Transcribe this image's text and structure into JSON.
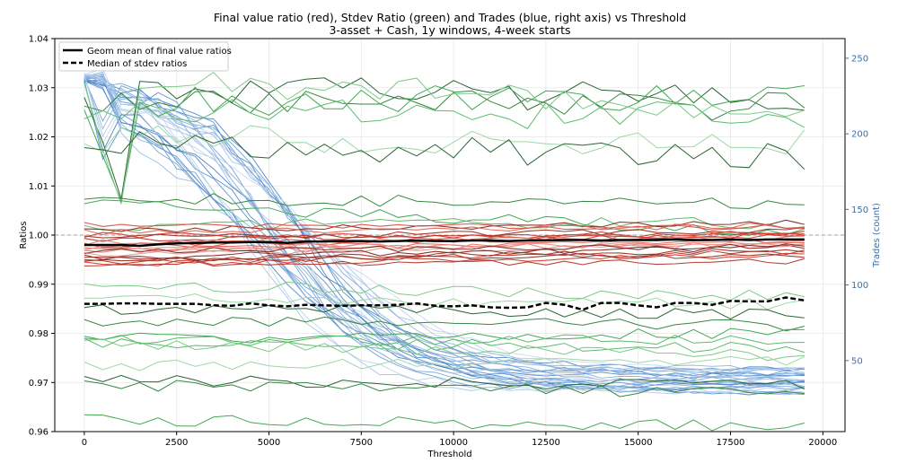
{
  "chart_data": {
    "type": "line",
    "title": "Final value ratio (red), Stdev Ratio (green) and Trades (blue, right axis) vs Threshold",
    "subtitle": "3-asset + Cash, 1y windows, 4-week starts",
    "xlabel": "Threshold",
    "ylabel": "Ratios",
    "y2label": "Trades (count)",
    "xlim": [
      -800,
      20600
    ],
    "ylim": [
      0.96,
      1.04
    ],
    "y2lim": [
      3,
      263
    ],
    "x_ticks": [
      0,
      2500,
      5000,
      7500,
      10000,
      12500,
      15000,
      17500,
      20000
    ],
    "y_ticks": [
      0.96,
      0.97,
      0.98,
      0.99,
      1.0,
      1.01,
      1.02,
      1.03,
      1.04
    ],
    "y2_ticks": [
      50,
      100,
      150,
      200,
      250
    ],
    "grid": true,
    "reference_line_y": 1.0,
    "legend_position": "top-left",
    "legend": [
      {
        "label": "Geom mean of final value ratios",
        "style": "solid",
        "color": "#000000"
      },
      {
        "label": "Median of stdev ratios",
        "style": "dashed",
        "color": "#000000"
      }
    ],
    "x": [
      0,
      500,
      1000,
      1500,
      2000,
      2500,
      3000,
      3500,
      4000,
      4500,
      5000,
      5500,
      6000,
      6500,
      7000,
      7500,
      8000,
      8500,
      9000,
      9500,
      10000,
      10500,
      11000,
      11500,
      12000,
      12500,
      13000,
      13500,
      14000,
      14500,
      15000,
      15500,
      16000,
      16500,
      17000,
      17500,
      18000,
      18500,
      19000,
      19500
    ],
    "summary_series": [
      {
        "name": "Geom mean of final value ratios",
        "axis": "left",
        "style": "solid",
        "values": [
          0.998,
          0.998,
          0.998,
          0.9978,
          0.9981,
          0.9983,
          0.9984,
          0.9985,
          0.9985,
          0.9986,
          0.9986,
          0.9984,
          0.9987,
          0.9987,
          0.9988,
          0.9988,
          0.9987,
          0.9988,
          0.9989,
          0.9988,
          0.9988,
          0.9989,
          0.9989,
          0.9988,
          0.9989,
          0.9989,
          0.999,
          0.999,
          0.9989,
          0.999,
          0.999,
          0.999,
          0.9991,
          0.999,
          0.999,
          0.9991,
          0.999,
          0.9991,
          0.9991,
          0.9991
        ]
      },
      {
        "name": "Median of stdev ratios",
        "axis": "left",
        "style": "dashed",
        "values": [
          0.986,
          0.986,
          0.9861,
          0.9861,
          0.986,
          0.986,
          0.986,
          0.9857,
          0.9856,
          0.9861,
          0.9857,
          0.9855,
          0.9858,
          0.9857,
          0.9856,
          0.9857,
          0.9857,
          0.9858,
          0.9861,
          0.9856,
          0.9855,
          0.9857,
          0.9853,
          0.9852,
          0.9853,
          0.9862,
          0.9858,
          0.9848,
          0.9862,
          0.9862,
          0.9857,
          0.9853,
          0.9862,
          0.9862,
          0.9858,
          0.9866,
          0.9865,
          0.9865,
          0.9873,
          0.9867
        ]
      }
    ],
    "value_ratio_series": {
      "axis": "left",
      "color_family": "red",
      "endpoints": [
        [
          1.001,
          1.0025
        ],
        [
          0.9995,
          1.001
        ],
        [
          0.999,
          1.0005
        ],
        [
          0.998,
          1.0
        ],
        [
          0.9975,
          1.0005
        ],
        [
          0.997,
          0.999
        ],
        [
          0.9965,
          0.9985
        ],
        [
          0.996,
          0.998
        ],
        [
          0.9955,
          0.9975
        ],
        [
          0.995,
          0.997
        ],
        [
          0.9945,
          0.9965
        ],
        [
          0.994,
          0.996
        ],
        [
          1.002,
          1.0015
        ],
        [
          1.0005,
          1.002
        ],
        [
          0.9985,
          0.9995
        ],
        [
          0.9975,
          0.998
        ],
        [
          0.9968,
          0.9978
        ],
        [
          0.9952,
          0.9958
        ],
        [
          0.9942,
          0.9946
        ],
        [
          1.0,
          0.9995
        ]
      ]
    },
    "stdev_ratio_series": {
      "axis": "left",
      "color_family": "green",
      "endpoints": [
        [
          1.03,
          1.0275
        ],
        [
          1.028,
          1.026
        ],
        [
          1.027,
          1.0285
        ],
        [
          1.025,
          1.024
        ],
        [
          1.032,
          1.0255
        ],
        [
          1.0195,
          1.0195
        ],
        [
          1.0185,
          1.0155
        ],
        [
          1.0075,
          1.0062
        ],
        [
          1.0065,
          1.0005
        ],
        [
          1.002,
          1.0025
        ],
        [
          0.99,
          0.9875
        ],
        [
          0.987,
          0.986
        ],
        [
          0.985,
          0.984
        ],
        [
          0.9825,
          0.9815
        ],
        [
          0.979,
          0.98
        ],
        [
          0.9785,
          0.977
        ],
        [
          0.978,
          0.9755
        ],
        [
          0.9735,
          0.9745
        ],
        [
          0.9705,
          0.9695
        ],
        [
          0.9695,
          0.9678
        ],
        [
          0.9625,
          0.961
        ],
        [
          0.978,
          0.979
        ]
      ]
    },
    "trades_series": {
      "axis": "right",
      "color_family": "blue",
      "profile": {
        "start_range": [
          225,
          240
        ],
        "end_range": [
          28,
          45
        ],
        "midpoint_threshold_range": [
          3800,
          6200
        ]
      },
      "count": 26
    }
  }
}
